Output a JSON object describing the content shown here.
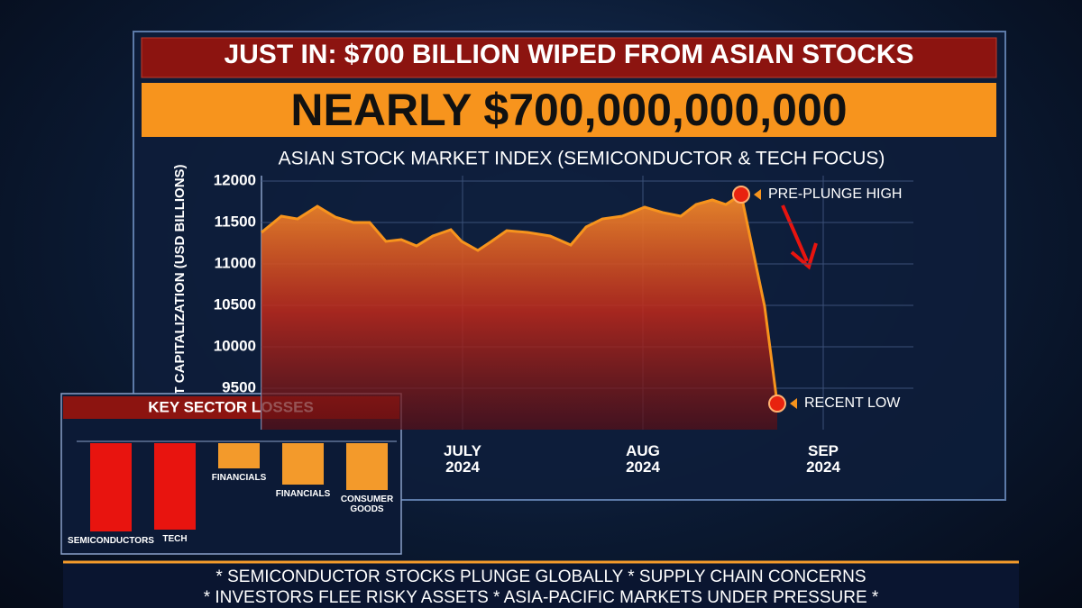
{
  "header": {
    "breaking": "JUST IN: $700 BILLION WIPED FROM ASIAN STOCKS",
    "headline": "NEARLY $700,000,000,000"
  },
  "chart_data": [
    {
      "type": "area",
      "title": "ASIAN STOCK MARKET INDEX (SEMICONDUCTOR & TECH FOCUS)",
      "y_label": "MARKET CAPITALIZATION (USD BILLIONS)",
      "color": "#f7941d",
      "x": [
        5.885,
        5.995,
        6.085,
        6.195,
        6.295,
        6.395,
        6.485,
        6.575,
        6.66,
        6.745,
        6.835,
        6.935,
        6.995,
        7.085,
        7.16,
        7.245,
        7.36,
        7.485,
        7.6,
        7.685,
        7.775,
        7.885,
        8.01,
        8.11,
        8.21,
        8.295,
        8.385,
        8.46,
        8.545,
        8.675,
        8.745
      ],
      "values": [
        11380,
        11576,
        11543,
        11696,
        11565,
        11500,
        11500,
        11272,
        11293,
        11217,
        11337,
        11413,
        11272,
        11163,
        11272,
        11402,
        11380,
        11337,
        11228,
        11446,
        11543,
        11576,
        11685,
        11620,
        11576,
        11717,
        11772,
        11717,
        11837,
        10489,
        9315
      ],
      "xlim": [
        5.885,
        9.5
      ],
      "ylim": [
        9000,
        12000
      ],
      "xticks": [
        {
          "value": 7,
          "label": "JULY\n2024"
        },
        {
          "value": 8,
          "label": "AUG\n2024"
        },
        {
          "value": 9,
          "label": "SEP\n2024"
        }
      ],
      "yticks": [
        9500,
        10000,
        10500,
        11000,
        11500,
        12000
      ],
      "grid": true,
      "annotations": [
        "PRE-PLUNGE HIGH",
        "RECENT LOW"
      ]
    },
    {
      "type": "bar",
      "title": "KEY SECTOR LOSSES",
      "categories": [
        "SEMICONDUCTORS",
        "TECH",
        "FINANCIALS",
        "FINANCIALS",
        "CONSUMER\nGOODS"
      ],
      "values": [
        98,
        96,
        28,
        46,
        52
      ],
      "colors": [
        "#e8140f",
        "#e8140f",
        "#f39a2b",
        "#f39a2b",
        "#f39a2b"
      ]
    }
  ],
  "ticker": [
    "* SEMICONDUCTOR STOCKS PLUNGE GLOBALLY * SUPPLY CHAIN CONCERNS",
    "* INVESTORS FLEE RISKY ASSETS * ASIA-PACIFIC MARKETS UNDER PRESSURE *"
  ]
}
